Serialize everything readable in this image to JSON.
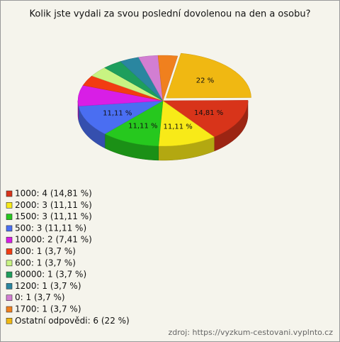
{
  "chart_data": {
    "type": "pie3d",
    "title": "Kolik jste vydali za svou poslední dovolenou na den a osobu?",
    "categories": [
      "1000: 4 (14,81 %)",
      "2000: 3 (11,11 %)",
      "1500: 3 (11,11 %)",
      "500: 3 (11,11 %)",
      "10000: 2 (7,41 %)",
      "800: 1 (3,7 %)",
      "600: 1 (3,7 %)",
      "90000: 1 (3,7 %)",
      "1200: 1 (3,7 %)",
      "0: 1 (3,7 %)",
      "1700: 1 (3,7 %)",
      "Ostatní odpovědi: 6 (22 %)"
    ],
    "values": [
      14.81,
      11.11,
      11.11,
      11.11,
      7.41,
      3.7,
      3.7,
      3.7,
      3.7,
      3.7,
      3.7,
      22
    ],
    "value_labels": [
      "14,81 %",
      "11,11 %",
      "11,11 %",
      "11,11 %",
      null,
      null,
      null,
      null,
      null,
      null,
      null,
      "22 %"
    ],
    "colors": [
      "#d8341a",
      "#f8ea18",
      "#26c81e",
      "#4a6ef2",
      "#d81ee6",
      "#f23c12",
      "#c8f482",
      "#1e9e5c",
      "#2a86a0",
      "#d27ed2",
      "#f0801e",
      "#f0b812"
    ],
    "source": "zdroj: https://vyzkum-cestovani.vyplnto.cz"
  }
}
